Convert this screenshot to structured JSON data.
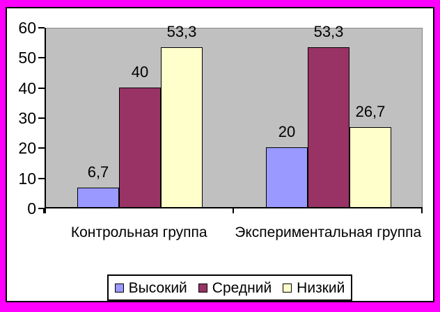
{
  "frame": {
    "border_color": "#FF00FF",
    "background": "#FFFFFF"
  },
  "chart_data": {
    "type": "bar",
    "title": "",
    "categories": [
      "Контрольная группа",
      "Экспериментальная группа"
    ],
    "series": [
      {
        "name": "Высокий",
        "color": "#9999FF",
        "values": [
          6.7,
          20
        ],
        "labels": [
          "6,7",
          "20"
        ]
      },
      {
        "name": "Средний",
        "color": "#993366",
        "values": [
          40,
          53.3
        ],
        "labels": [
          "40",
          "53,3"
        ]
      },
      {
        "name": "Низкий",
        "color": "#FFFFCC",
        "values": [
          53.3,
          26.7
        ],
        "labels": [
          "53,3",
          "26,7"
        ]
      }
    ],
    "ylim": [
      0,
      60
    ],
    "y_ticks": [
      0,
      10,
      20,
      30,
      40,
      50,
      60
    ],
    "grid": false,
    "legend_position": "bottom",
    "plot_background": "#C0C0C0",
    "plot_border_color": "#848484",
    "axis_color": "#000000",
    "decimal_separator": ","
  }
}
